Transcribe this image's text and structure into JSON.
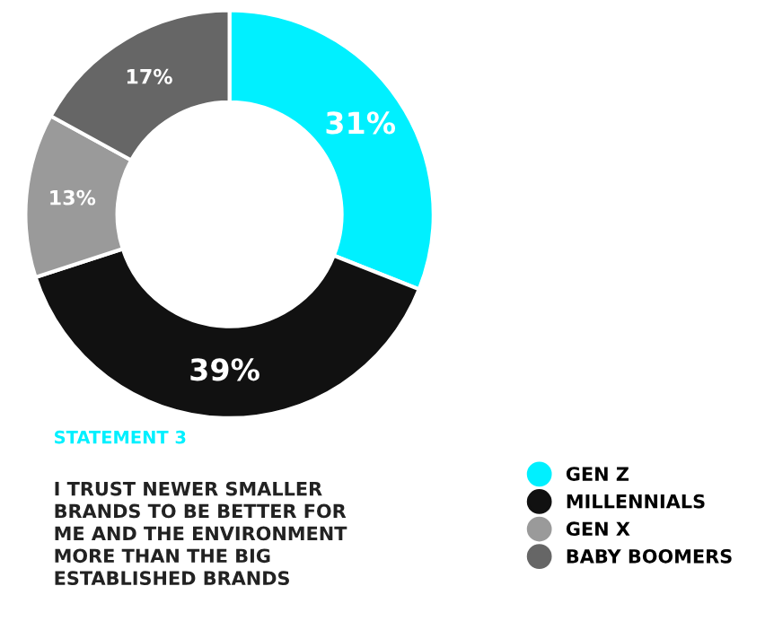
{
  "chart_data": {
    "type": "donut",
    "title": "STATEMENT 3",
    "subtitle": "I TRUST NEWER SMALLER\nBRANDS TO BE BETTER FOR\nME AND THE ENVIRONMENT\nMORE THAN THE BIG\nESTABLISHED BRANDS",
    "categories": [
      "GEN Z",
      "MILLENNIALS",
      "GEN X",
      "BABY BOOMERS"
    ],
    "values": [
      31,
      39,
      13,
      17
    ],
    "value_labels": [
      "31%",
      "39%",
      "13%",
      "17%"
    ],
    "colors": [
      "#00f0ff",
      "#111111",
      "#9a9a9a",
      "#666666"
    ],
    "legend": "bottom right"
  }
}
